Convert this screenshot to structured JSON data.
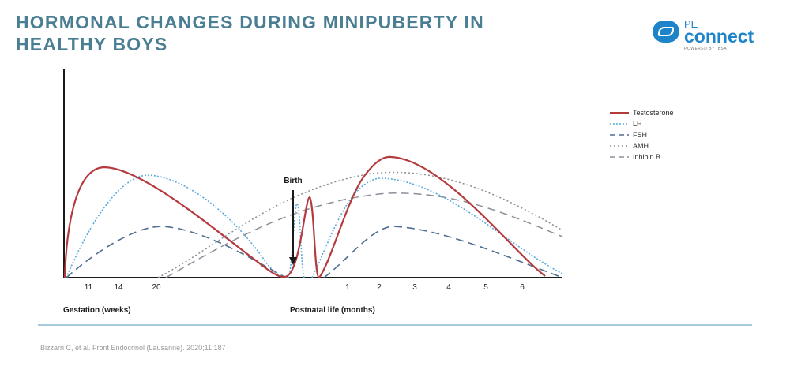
{
  "header": {
    "title_line1": "HORMONAL CHANGES DURING MINIPUBERTY IN",
    "title_line2": "HEALTHY BOYS"
  },
  "logo": {
    "top": "PE",
    "main": "connect",
    "sub": "POWERED BY IBSA"
  },
  "chart_data": {
    "type": "line",
    "title": "HORMONAL CHANGES DURING MINIPUBERTY IN HEALTHY BOYS",
    "gestation_axis": {
      "label": "Gestation (weeks)",
      "ticks": [
        11,
        14,
        20
      ]
    },
    "postnatal_axis": {
      "label": "Postnatal life (months)",
      "ticks": [
        1,
        2,
        3,
        4,
        5,
        6
      ]
    },
    "annotation": "Birth",
    "y_axis": "relative concentration (unlabeled)",
    "legend_position": "right",
    "series": [
      {
        "name": "Testosterone",
        "color": "#b53a3d",
        "style": "solid"
      },
      {
        "name": "LH",
        "color": "#5aa9dd",
        "style": "dotted"
      },
      {
        "name": "FSH",
        "color": "#4f6f94",
        "style": "dashed"
      },
      {
        "name": "AMH",
        "color": "#8a8f98",
        "style": "dotted"
      },
      {
        "name": "Inhibin B",
        "color": "#8a8f98",
        "style": "dashed"
      }
    ]
  },
  "citation": "Bizzarri C, et al. Front Endocrinol (Lausanne). 2020;11:187"
}
